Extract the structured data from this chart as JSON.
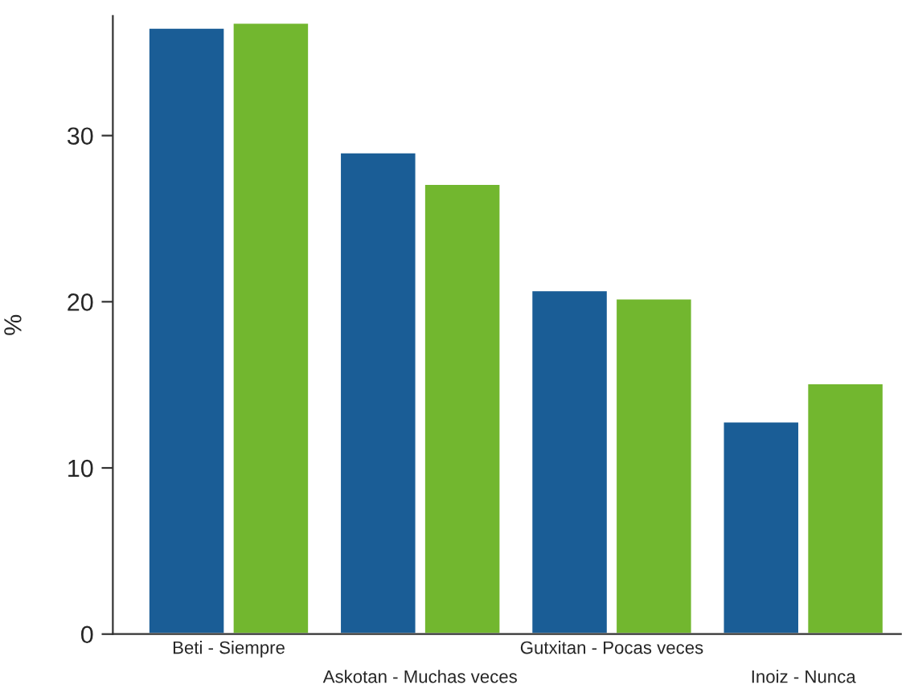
{
  "chart_data": {
    "type": "bar",
    "ylabel": "%",
    "categories": [
      "Beti - Siempre",
      "Askotan - Muchas veces",
      "Gutxitan - Pocas veces",
      "Inoiz - Nunca"
    ],
    "series": [
      {
        "color": "#1a5d96",
        "values": [
          36.5,
          29.0,
          20.7,
          12.8
        ]
      },
      {
        "color": "#72b72f",
        "values": [
          36.8,
          27.1,
          20.2,
          15.1
        ]
      }
    ],
    "ylim": [
      0,
      37.2
    ],
    "yticks": [
      0,
      10,
      20,
      30
    ],
    "grid": false,
    "legend": false
  }
}
